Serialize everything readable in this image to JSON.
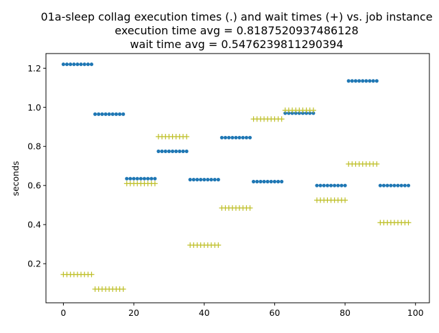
{
  "chart_data": {
    "type": "scatter",
    "title_lines": [
      "01a-sleep collag execution times (.) and wait times (+) vs. job instance",
      "execution time avg = 0.8187520937486128",
      "wait time avg = 0.5476239811290394"
    ],
    "xlabel": "",
    "ylabel": "seconds",
    "xlim": [
      -4.95,
      103.95
    ],
    "ylim": [
      0.0,
      1.275
    ],
    "xticks": [
      0,
      20,
      40,
      60,
      80,
      100
    ],
    "xtick_labels": [
      "0",
      "20",
      "40",
      "60",
      "80",
      "100"
    ],
    "yticks": [
      0.2,
      0.4,
      0.6,
      0.8,
      1.0,
      1.2
    ],
    "ytick_labels": [
      "0.2",
      "0.4",
      "0.6",
      "0.8",
      "1.0",
      "1.2"
    ],
    "grid": false,
    "colors": {
      "execution": "#1f77b4",
      "wait": "#bcbd22"
    },
    "series": [
      {
        "marker": "dot",
        "groups": [
          {
            "x_start": 0,
            "x_end": 8,
            "y": 1.22
          },
          {
            "x_start": 9,
            "x_end": 17,
            "y": 0.965
          },
          {
            "x_start": 18,
            "x_end": 26,
            "y": 0.635
          },
          {
            "x_start": 27,
            "x_end": 35,
            "y": 0.775
          },
          {
            "x_start": 36,
            "x_end": 44,
            "y": 0.63
          },
          {
            "x_start": 45,
            "x_end": 53,
            "y": 0.845
          },
          {
            "x_start": 54,
            "x_end": 62,
            "y": 0.62
          },
          {
            "x_start": 63,
            "x_end": 71,
            "y": 0.97
          },
          {
            "x_start": 72,
            "x_end": 80,
            "y": 0.6
          },
          {
            "x_start": 81,
            "x_end": 89,
            "y": 1.135
          },
          {
            "x_start": 90,
            "x_end": 98,
            "y": 0.6
          }
        ]
      },
      {
        "marker": "plus",
        "groups": [
          {
            "x_start": 0,
            "x_end": 8,
            "y": 0.145
          },
          {
            "x_start": 9,
            "x_end": 17,
            "y": 0.07
          },
          {
            "x_start": 18,
            "x_end": 26,
            "y": 0.61
          },
          {
            "x_start": 27,
            "x_end": 35,
            "y": 0.85
          },
          {
            "x_start": 36,
            "x_end": 44,
            "y": 0.295
          },
          {
            "x_start": 45,
            "x_end": 53,
            "y": 0.485
          },
          {
            "x_start": 54,
            "x_end": 62,
            "y": 0.94
          },
          {
            "x_start": 63,
            "x_end": 71,
            "y": 0.985
          },
          {
            "x_start": 72,
            "x_end": 80,
            "y": 0.525
          },
          {
            "x_start": 81,
            "x_end": 89,
            "y": 0.71
          },
          {
            "x_start": 90,
            "x_end": 98,
            "y": 0.41
          }
        ]
      }
    ]
  }
}
